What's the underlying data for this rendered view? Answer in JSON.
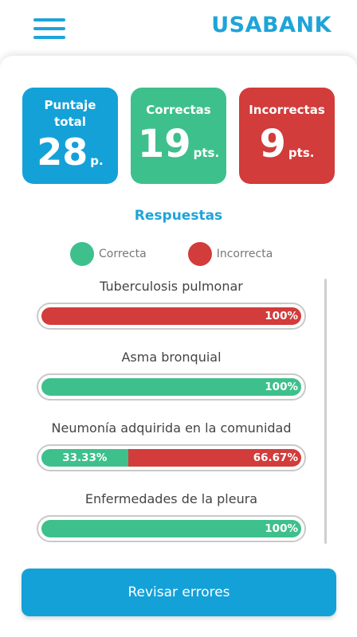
{
  "header": {
    "brand": "USABANK",
    "menu_icon": "hamburger-menu-icon",
    "accent": "#1ea4d9"
  },
  "scores": {
    "total": {
      "label": "Puntaje total",
      "value": "28",
      "unit": "p.",
      "color": "#14a1d8"
    },
    "correct": {
      "label": "Correctas",
      "value": "19",
      "unit": "pts.",
      "color": "#3ec08c"
    },
    "incorrect": {
      "label": "Incorrectas",
      "value": "9",
      "unit": "pts.",
      "color": "#d23c3a"
    }
  },
  "answers": {
    "title": "Respuestas",
    "legend": [
      {
        "label": "Correcta",
        "color": "#3ec08c"
      },
      {
        "label": "Incorrecta",
        "color": "#d23c3a"
      }
    ],
    "items": [
      {
        "title": "Tuberculosis pulmonar",
        "correct_pct": 0,
        "incorrect_pct": 100,
        "correct_label": "",
        "incorrect_label": "100%"
      },
      {
        "title": "Asma bronquial",
        "correct_pct": 100,
        "incorrect_pct": 0,
        "correct_label": "100%",
        "incorrect_label": ""
      },
      {
        "title": "Neumonía adquirida en la comunidad",
        "correct_pct": 33.33,
        "incorrect_pct": 66.67,
        "correct_label": "33.33%",
        "incorrect_label": "66.67%"
      },
      {
        "title": "Enfermedades de la pleura",
        "correct_pct": 100,
        "incorrect_pct": 0,
        "correct_label": "100%",
        "incorrect_label": ""
      }
    ]
  },
  "actions": {
    "review_label": "Revisar errores"
  }
}
